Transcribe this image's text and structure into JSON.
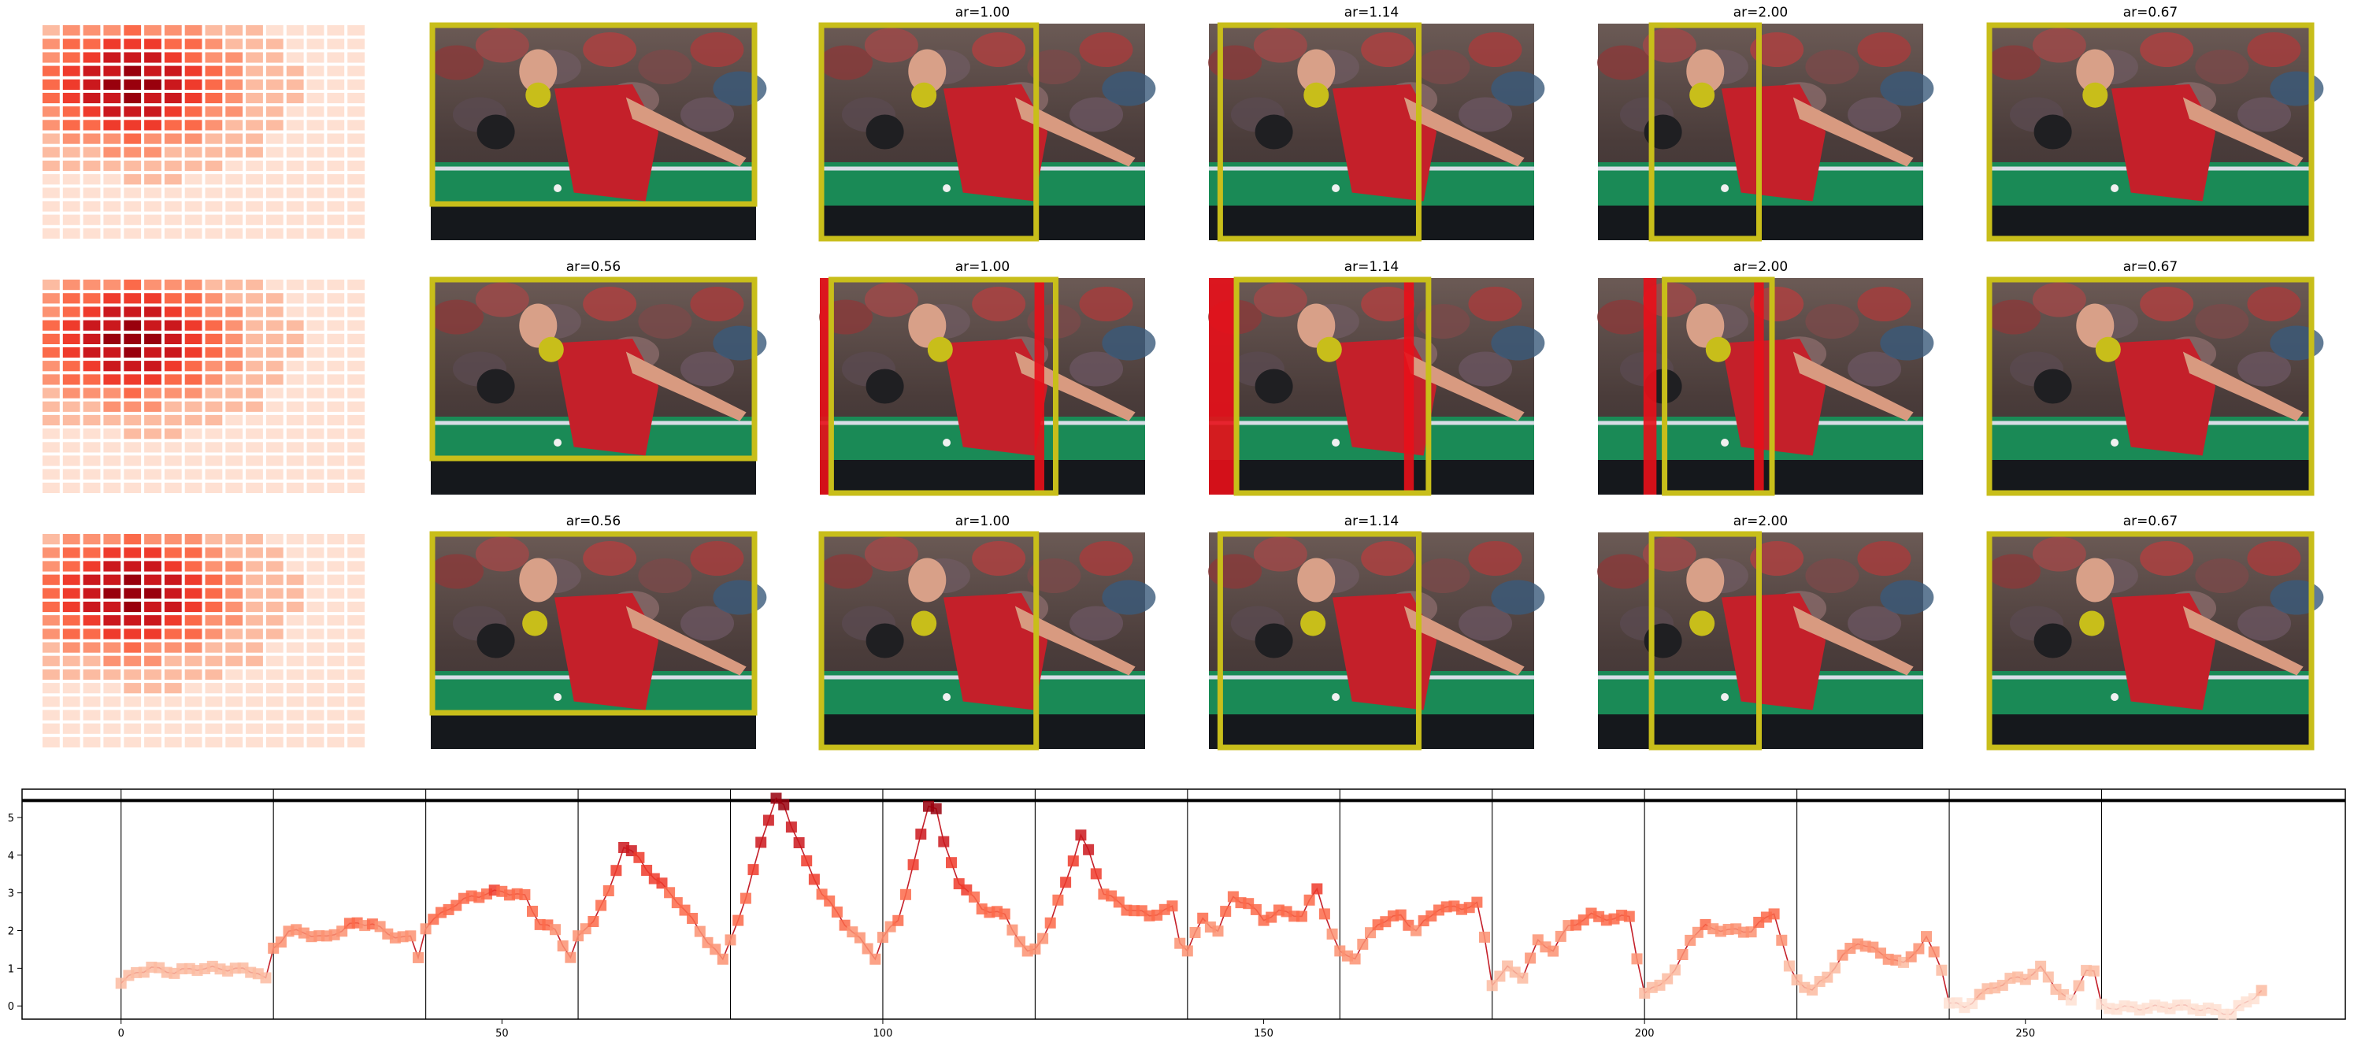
{
  "figure": {
    "panel_columns": [
      "heatmap",
      "crop",
      "crop",
      "crop",
      "crop",
      "crop"
    ],
    "crop_titles": [
      "ar=0.56",
      "ar=1.00",
      "ar=1.14",
      "ar=2.00",
      "ar=0.67"
    ],
    "heatmap_palette": [
      "#fff5f0",
      "#fee0d2",
      "#fcbba1",
      "#fc9272",
      "#fb6a4a",
      "#ef3b2c",
      "#cb181d",
      "#99000d"
    ],
    "colors": {
      "crop_box": "#c8be1a",
      "focus_dot": "#c8be1a",
      "red_bar": "#e8101a",
      "jersey": "#c4202a",
      "table_green": "#1a8a56",
      "line_color": "#c4202a"
    }
  },
  "chart_data": {
    "type": "line",
    "title": "",
    "xlabel": "",
    "ylabel": "",
    "xlim": [
      -13,
      292
    ],
    "ylim": [
      -0.35,
      5.75
    ],
    "xticks": [
      0,
      50,
      100,
      150,
      200,
      250
    ],
    "yticks": [
      0,
      1,
      2,
      3,
      4,
      5
    ],
    "reference_line_y": 5.45,
    "segment_boundaries": [
      0,
      20,
      40,
      60,
      80,
      100,
      120,
      140,
      160,
      180,
      200,
      220,
      240,
      260
    ],
    "anchors": [
      [
        0,
        0.6
      ],
      [
        2,
        0.9
      ],
      [
        4,
        1.0
      ],
      [
        7,
        0.9
      ],
      [
        10,
        1.0
      ],
      [
        15,
        0.98
      ],
      [
        18,
        0.9
      ],
      [
        19,
        0.7
      ],
      [
        20,
        1.5
      ],
      [
        22,
        2.0
      ],
      [
        25,
        1.9
      ],
      [
        27,
        1.8
      ],
      [
        30,
        2.15
      ],
      [
        33,
        2.2
      ],
      [
        35,
        1.9
      ],
      [
        38,
        1.8
      ],
      [
        39,
        1.3
      ],
      [
        40,
        2.1
      ],
      [
        43,
        2.6
      ],
      [
        46,
        2.9
      ],
      [
        50,
        3.05
      ],
      [
        53,
        2.9
      ],
      [
        55,
        2.2
      ],
      [
        57,
        2.0
      ],
      [
        59,
        1.3
      ],
      [
        60,
        1.8
      ],
      [
        62,
        2.3
      ],
      [
        64,
        3.0
      ],
      [
        66,
        4.25
      ],
      [
        68,
        3.9
      ],
      [
        70,
        3.4
      ],
      [
        73,
        2.8
      ],
      [
        76,
        2.0
      ],
      [
        79,
        1.2
      ],
      [
        80,
        1.8
      ],
      [
        82,
        2.8
      ],
      [
        84,
        4.4
      ],
      [
        86,
        5.45
      ],
      [
        87,
        5.35
      ],
      [
        88,
        4.8
      ],
      [
        90,
        3.8
      ],
      [
        92,
        3.0
      ],
      [
        95,
        2.2
      ],
      [
        99,
        1.3
      ],
      [
        100,
        1.8
      ],
      [
        102,
        2.3
      ],
      [
        104,
        3.7
      ],
      [
        106,
        5.35
      ],
      [
        107,
        5.25
      ],
      [
        108,
        4.3
      ],
      [
        110,
        3.3
      ],
      [
        113,
        2.6
      ],
      [
        116,
        2.4
      ],
      [
        119,
        1.4
      ],
      [
        120,
        1.5
      ],
      [
        122,
        2.2
      ],
      [
        124,
        3.3
      ],
      [
        126,
        4.5
      ],
      [
        127,
        4.1
      ],
      [
        129,
        3.0
      ],
      [
        132,
        2.6
      ],
      [
        135,
        2.4
      ],
      [
        138,
        2.6
      ],
      [
        139,
        1.7
      ],
      [
        140,
        1.5
      ],
      [
        142,
        2.3
      ],
      [
        144,
        2.0
      ],
      [
        146,
        2.9
      ],
      [
        148,
        2.7
      ],
      [
        150,
        2.3
      ],
      [
        152,
        2.5
      ],
      [
        155,
        2.4
      ],
      [
        157,
        3.1
      ],
      [
        159,
        1.9
      ],
      [
        160,
        1.4
      ],
      [
        162,
        1.3
      ],
      [
        165,
        2.2
      ],
      [
        168,
        2.4
      ],
      [
        170,
        2.0
      ],
      [
        173,
        2.6
      ],
      [
        176,
        2.6
      ],
      [
        178,
        2.7
      ],
      [
        179,
        1.8
      ],
      [
        180,
        0.6
      ],
      [
        182,
        1.0
      ],
      [
        184,
        0.8
      ],
      [
        186,
        1.7
      ],
      [
        188,
        1.5
      ],
      [
        190,
        2.1
      ],
      [
        193,
        2.4
      ],
      [
        196,
        2.3
      ],
      [
        198,
        2.4
      ],
      [
        199,
        1.3
      ],
      [
        200,
        0.3
      ],
      [
        202,
        0.6
      ],
      [
        204,
        0.9
      ],
      [
        206,
        1.8
      ],
      [
        208,
        2.1
      ],
      [
        211,
        2.0
      ],
      [
        214,
        2.0
      ],
      [
        217,
        2.5
      ],
      [
        219,
        1.0
      ],
      [
        220,
        0.7
      ],
      [
        222,
        0.4
      ],
      [
        224,
        0.8
      ],
      [
        226,
        1.3
      ],
      [
        228,
        1.7
      ],
      [
        231,
        1.4
      ],
      [
        234,
        1.1
      ],
      [
        237,
        1.8
      ],
      [
        239,
        1.0
      ],
      [
        240,
        0.1
      ],
      [
        242,
        -0.05
      ],
      [
        244,
        0.3
      ],
      [
        246,
        0.5
      ],
      [
        248,
        0.7
      ],
      [
        250,
        0.75
      ],
      [
        252,
        1.0
      ],
      [
        254,
        0.5
      ],
      [
        256,
        0.1
      ],
      [
        258,
        1.0
      ],
      [
        259,
        0.9
      ],
      [
        260,
        0.0
      ],
      [
        262,
        -0.05
      ],
      [
        266,
        -0.05
      ],
      [
        270,
        0.0
      ],
      [
        274,
        -0.1
      ],
      [
        277,
        -0.2
      ],
      [
        279,
        0.1
      ],
      [
        281,
        0.4
      ]
    ]
  }
}
